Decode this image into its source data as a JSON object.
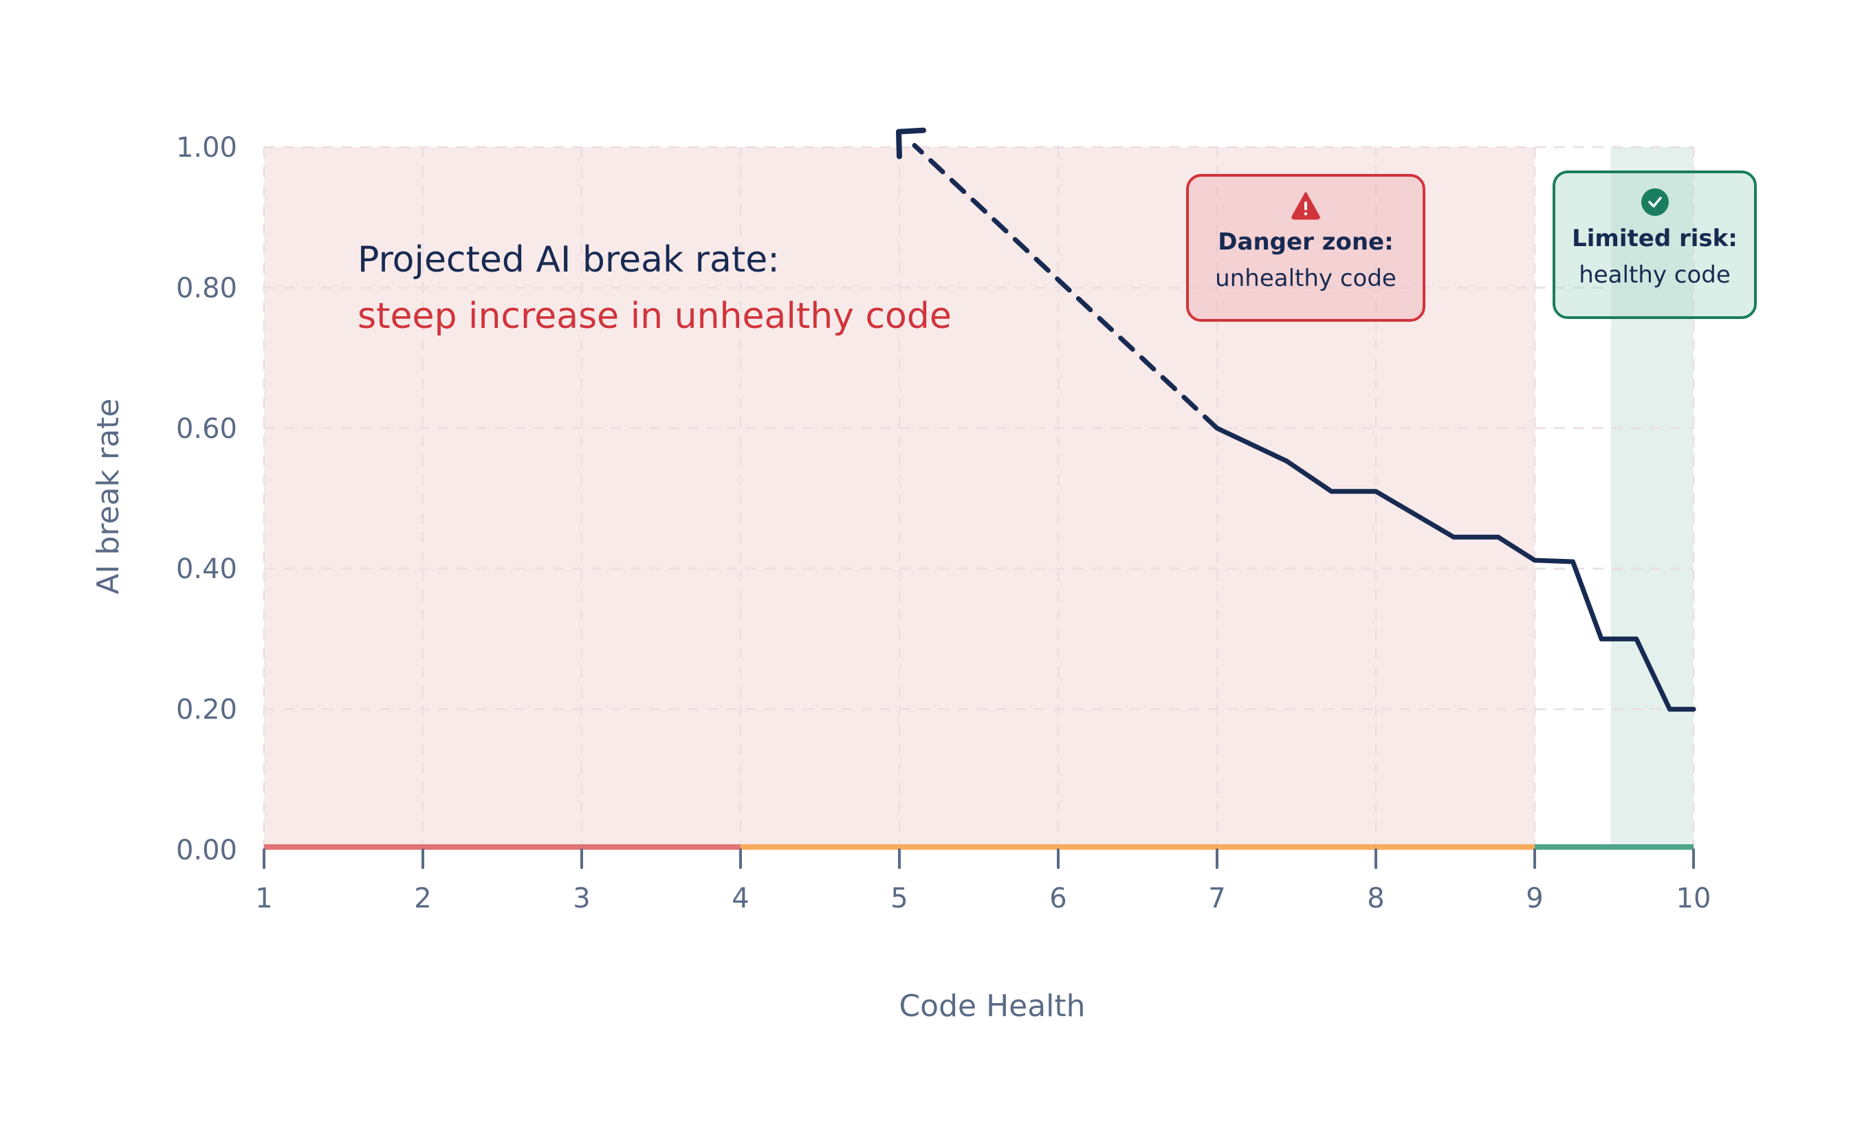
{
  "chart_data": {
    "type": "line",
    "title": "",
    "xlabel": "Code Health",
    "ylabel": "AI break rate",
    "xlim": [
      1,
      10
    ],
    "ylim": [
      0,
      1
    ],
    "x_ticks": [
      "1",
      "2",
      "3",
      "4",
      "5",
      "6",
      "7",
      "8",
      "9",
      "10"
    ],
    "y_ticks": [
      "0.00",
      "0.20",
      "0.40",
      "0.60",
      "0.80",
      "1.00"
    ],
    "grid": true,
    "series": [
      {
        "name": "AI break rate",
        "style": "solid",
        "color": "#172a52",
        "points": [
          [
            7.0,
            0.6
          ],
          [
            7.44,
            0.553
          ],
          [
            7.72,
            0.51
          ],
          [
            8.0,
            0.51
          ],
          [
            8.49,
            0.445
          ],
          [
            8.77,
            0.445
          ],
          [
            9.0,
            0.412
          ],
          [
            9.24,
            0.41
          ],
          [
            9.42,
            0.3
          ],
          [
            9.64,
            0.3
          ],
          [
            9.85,
            0.2
          ],
          [
            10.0,
            0.2
          ]
        ]
      },
      {
        "name": "Projected AI break rate",
        "style": "dashed-arrow",
        "color": "#172a52",
        "points": [
          [
            7.0,
            0.6
          ],
          [
            5.0,
            1.02
          ]
        ]
      }
    ],
    "regions": [
      {
        "name": "danger-zone",
        "x": [
          1,
          9
        ],
        "color": "#f9eaea"
      },
      {
        "name": "healthy-zone",
        "x": [
          9.48,
          10
        ],
        "color": "#e3f0eb"
      }
    ],
    "axis_bands": [
      {
        "name": "red",
        "x": [
          1,
          4
        ],
        "color": "#e07474"
      },
      {
        "name": "orange",
        "x": [
          4,
          9
        ],
        "color": "#f8ab5c"
      },
      {
        "name": "green",
        "x": [
          9,
          10
        ],
        "color": "#4ea58a"
      }
    ],
    "annotations": {
      "projection_line1": "Projected AI break rate:",
      "projection_line2": "steep increase in unhealthy code",
      "danger_title": "Danger zone:",
      "danger_sub": "unhealthy code",
      "safe_title": "Limited risk:",
      "safe_sub": "healthy code"
    }
  },
  "icons": {
    "danger": "warning-triangle-icon",
    "safe": "check-circle-icon"
  },
  "colors": {
    "line": "#172a52",
    "danger": "#d1343b",
    "safe": "#1a7d5e",
    "axis_text": "#5a6b86"
  }
}
